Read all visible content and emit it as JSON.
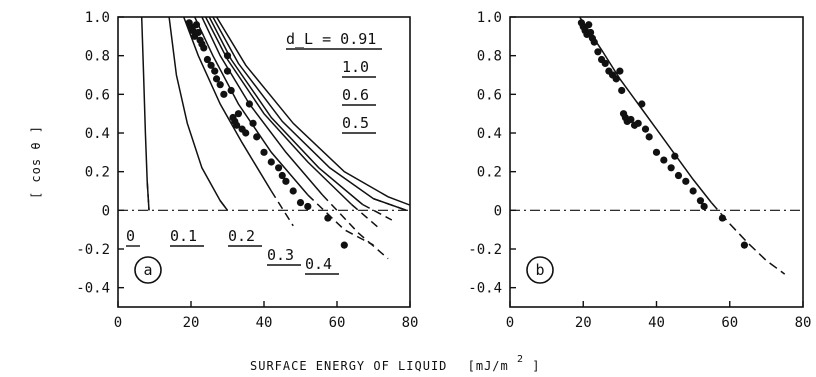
{
  "figure": {
    "shared_xlabel": "SURFACE ENERGY OF LIQUID",
    "shared_xlabel_unit_base": "[mJ/m",
    "shared_xlabel_unit_sup": "2",
    "shared_xlabel_unit_end": "]",
    "shared_ylabel": "[ cos θ ]"
  },
  "chart_data": [
    {
      "type": "line",
      "panel_label": "a",
      "xlim": [
        0,
        80
      ],
      "ylim": [
        -0.5,
        1.0
      ],
      "x_ticks": [
        "0",
        "20",
        "40",
        "60",
        "80"
      ],
      "y_ticks": [
        "1.0",
        "0.8",
        "0.6",
        "0.4",
        "0.2",
        "0",
        "-0.2",
        "-0.4"
      ],
      "reference_line": {
        "y": 0,
        "style": "dash-dot"
      },
      "curve_labels_top": [
        "d_L = 0.91",
        "1.0",
        "0.6",
        "0.5"
      ],
      "curve_labels_bottom": [
        "0",
        "0.1",
        "0.2",
        "0.3",
        "0.4"
      ],
      "series": [
        {
          "name": "0",
          "points": [
            [
              6.5,
              1.0
            ],
            [
              7.0,
              0.7
            ],
            [
              7.5,
              0.4
            ],
            [
              8.0,
              0.15
            ],
            [
              8.5,
              0.0
            ]
          ]
        },
        {
          "name": "0.1",
          "points": [
            [
              14,
              1.0
            ],
            [
              16,
              0.7
            ],
            [
              19,
              0.45
            ],
            [
              23,
              0.22
            ],
            [
              28,
              0.05
            ],
            [
              30,
              0.0
            ]
          ]
        },
        {
          "name": "0.2",
          "points": [
            [
              18,
              1.0
            ],
            [
              22,
              0.8
            ],
            [
              28,
              0.55
            ],
            [
              34,
              0.35
            ],
            [
              42,
              0.1
            ],
            [
              48,
              -0.08
            ]
          ]
        },
        {
          "name": "0.3",
          "points": [
            [
              21,
              1.0
            ],
            [
              26,
              0.8
            ],
            [
              33,
              0.55
            ],
            [
              42,
              0.3
            ],
            [
              52,
              0.08
            ],
            [
              62,
              -0.1
            ],
            [
              70,
              -0.18
            ]
          ]
        },
        {
          "name": "0.4",
          "points": [
            [
              23,
              1.0
            ],
            [
              28,
              0.8
            ],
            [
              36,
              0.55
            ],
            [
              46,
              0.3
            ],
            [
              56,
              0.08
            ],
            [
              66,
              -0.12
            ],
            [
              74,
              -0.25
            ]
          ]
        },
        {
          "name": "0.5",
          "points": [
            [
              24,
              1.0
            ],
            [
              30,
              0.78
            ],
            [
              40,
              0.5
            ],
            [
              52,
              0.25
            ],
            [
              64,
              0.03
            ],
            [
              72,
              -0.1
            ]
          ]
        },
        {
          "name": "0.6",
          "points": [
            [
              25,
              1.0
            ],
            [
              31,
              0.78
            ],
            [
              42,
              0.48
            ],
            [
              55,
              0.22
            ],
            [
              67,
              0.03
            ],
            [
              75,
              -0.05
            ]
          ]
        },
        {
          "name": "1.0",
          "points": [
            [
              26,
              1.0
            ],
            [
              33,
              0.76
            ],
            [
              45,
              0.46
            ],
            [
              58,
              0.22
            ],
            [
              70,
              0.06
            ],
            [
              79,
              0.0
            ]
          ]
        },
        {
          "name": "0.91",
          "points": [
            [
              27,
              1.0
            ],
            [
              35,
              0.75
            ],
            [
              48,
              0.45
            ],
            [
              62,
              0.2
            ],
            [
              74,
              0.07
            ],
            [
              81,
              0.02
            ]
          ]
        }
      ],
      "scatter": [
        [
          19.5,
          0.97
        ],
        [
          20.0,
          0.95
        ],
        [
          20.5,
          0.93
        ],
        [
          21.0,
          0.9
        ],
        [
          21.5,
          0.96
        ],
        [
          22.0,
          0.92
        ],
        [
          22.5,
          0.88
        ],
        [
          23.0,
          0.86
        ],
        [
          23.5,
          0.84
        ],
        [
          24.5,
          0.78
        ],
        [
          25.5,
          0.75
        ],
        [
          26.5,
          0.72
        ],
        [
          27.0,
          0.68
        ],
        [
          28.0,
          0.65
        ],
        [
          29.0,
          0.6
        ],
        [
          30.0,
          0.8
        ],
        [
          30.0,
          0.72
        ],
        [
          31.0,
          0.62
        ],
        [
          31.5,
          0.48
        ],
        [
          32.0,
          0.46
        ],
        [
          32.5,
          0.44
        ],
        [
          33.0,
          0.5
        ],
        [
          34.0,
          0.42
        ],
        [
          35.0,
          0.4
        ],
        [
          36.0,
          0.55
        ],
        [
          37.0,
          0.45
        ],
        [
          38.0,
          0.38
        ],
        [
          40.0,
          0.3
        ],
        [
          42.0,
          0.25
        ],
        [
          44.0,
          0.22
        ],
        [
          45.0,
          0.18
        ],
        [
          46.0,
          0.15
        ],
        [
          48.0,
          0.1
        ],
        [
          50.0,
          0.04
        ],
        [
          52.0,
          0.02
        ],
        [
          57.5,
          -0.04
        ],
        [
          62.0,
          -0.18
        ]
      ]
    },
    {
      "type": "scatter",
      "panel_label": "b",
      "xlim": [
        0,
        80
      ],
      "ylim": [
        -0.5,
        1.0
      ],
      "x_ticks": [
        "0",
        "20",
        "40",
        "60",
        "80"
      ],
      "y_ticks": [
        "1.0",
        "0.8",
        "0.6",
        "0.4",
        "0.2",
        "0",
        "-0.2",
        "-0.4"
      ],
      "reference_line": {
        "y": 0,
        "style": "dash-dot"
      },
      "fit_curve": [
        [
          19,
          1.0
        ],
        [
          25,
          0.83
        ],
        [
          30,
          0.68
        ],
        [
          35,
          0.55
        ],
        [
          40,
          0.42
        ],
        [
          45,
          0.29
        ],
        [
          50,
          0.16
        ],
        [
          55,
          0.04
        ],
        [
          60,
          -0.07
        ],
        [
          65,
          -0.17
        ],
        [
          70,
          -0.26
        ],
        [
          75,
          -0.33
        ]
      ],
      "scatter": [
        [
          19.5,
          0.97
        ],
        [
          20.0,
          0.95
        ],
        [
          20.5,
          0.93
        ],
        [
          21.0,
          0.91
        ],
        [
          21.5,
          0.96
        ],
        [
          22.0,
          0.92
        ],
        [
          22.5,
          0.89
        ],
        [
          23.0,
          0.87
        ],
        [
          24.0,
          0.82
        ],
        [
          25.0,
          0.78
        ],
        [
          26.0,
          0.76
        ],
        [
          27.0,
          0.72
        ],
        [
          28.0,
          0.7
        ],
        [
          29.0,
          0.68
        ],
        [
          30.0,
          0.72
        ],
        [
          30.5,
          0.62
        ],
        [
          31.0,
          0.5
        ],
        [
          31.5,
          0.48
        ],
        [
          32.0,
          0.46
        ],
        [
          33.0,
          0.47
        ],
        [
          34.0,
          0.44
        ],
        [
          35.0,
          0.45
        ],
        [
          36.0,
          0.55
        ],
        [
          37.0,
          0.42
        ],
        [
          38.0,
          0.38
        ],
        [
          40.0,
          0.3
        ],
        [
          42.0,
          0.26
        ],
        [
          44.0,
          0.22
        ],
        [
          45.0,
          0.28
        ],
        [
          46.0,
          0.18
        ],
        [
          48.0,
          0.15
        ],
        [
          50.0,
          0.1
        ],
        [
          52.0,
          0.05
        ],
        [
          53.0,
          0.02
        ],
        [
          58.0,
          -0.04
        ],
        [
          64.0,
          -0.18
        ]
      ]
    }
  ]
}
